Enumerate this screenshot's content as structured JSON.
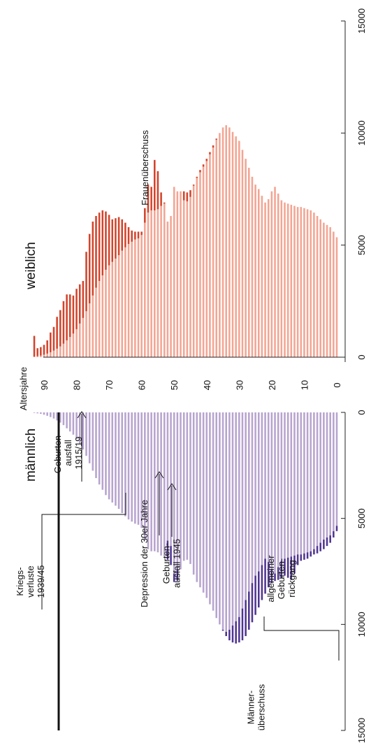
{
  "chart_data": {
    "type": "bar",
    "orientation": "rotated-population-pyramid",
    "title": "",
    "x_axis_label": "Altersjahre",
    "age_range": [
      0,
      93
    ],
    "age_tick_labels": [
      "90",
      "80",
      "70",
      "60",
      "50",
      "40",
      "30",
      "20",
      "10",
      "0"
    ],
    "value_range": [
      0,
      15000
    ],
    "value_tick_labels": [
      "0",
      "5000",
      "10000",
      "15000"
    ],
    "panels": {
      "male": {
        "label": "männlich",
        "color": "#b7a4cf",
        "surplus_color": "#4f3590",
        "surplus_label": "Männer-\nüberschuss"
      },
      "female": {
        "label": "weiblich",
        "color": "#f3a593",
        "surplus_color": "#d2442c",
        "surplus_label": "Frauenüberschuss"
      }
    },
    "series": [
      {
        "name": "männlich",
        "values": [
          5600,
          5900,
          6150,
          6300,
          6450,
          6550,
          6650,
          6700,
          6800,
          6900,
          6950,
          7000,
          7200,
          7600,
          7900,
          7800,
          7700,
          7800,
          7900,
          7950,
          8050,
          8250,
          8550,
          8850,
          9200,
          9550,
          9900,
          10250,
          10550,
          10750,
          10850,
          10900,
          10850,
          10750,
          10550,
          10300,
          10000,
          9700,
          9350,
          9050,
          8750,
          8500,
          8250,
          8000,
          7650,
          7150,
          6950,
          7000,
          7400,
          7950,
          8000,
          7200,
          6950,
          6850,
          6750,
          6600,
          6550,
          6550,
          6450,
          6000,
          5450,
          5300,
          5250,
          5150,
          5050,
          4900,
          4750,
          4550,
          4400,
          4250,
          4100,
          3900,
          3650,
          3400,
          3100,
          2750,
          2400,
          2050,
          1750,
          1500,
          1250,
          1050,
          900,
          750,
          600,
          480,
          380,
          290,
          220,
          160,
          110,
          70,
          45,
          25
        ]
      },
      {
        "name": "weiblich",
        "values": [
          5350,
          5600,
          5800,
          5900,
          6000,
          6150,
          6300,
          6450,
          6550,
          6600,
          6650,
          6700,
          6700,
          6750,
          6800,
          6850,
          6900,
          7000,
          7300,
          7600,
          7400,
          7050,
          6900,
          7200,
          7500,
          7700,
          8050,
          8450,
          8850,
          9250,
          9650,
          9850,
          10050,
          10250,
          10350,
          10250,
          10000,
          9750,
          9450,
          9150,
          8850,
          8600,
          8350,
          8050,
          7700,
          7450,
          7350,
          7400,
          7400,
          7400,
          7600,
          6300,
          6050,
          6900,
          7350,
          8300,
          8800,
          7600,
          7700,
          6650,
          5600,
          5600,
          5600,
          5650,
          5800,
          6000,
          6150,
          6250,
          6200,
          6150,
          6350,
          6500,
          6550,
          6450,
          6300,
          6050,
          5500,
          4700,
          3400,
          3250,
          3050,
          2750,
          2800,
          2800,
          2500,
          2100,
          1800,
          1350,
          1100,
          750,
          550,
          450,
          400,
          950
        ]
      }
    ],
    "annotations": [
      {
        "id": "kriegsverluste",
        "text": "Kriegs-\nverluste\n1939/45"
      },
      {
        "id": "geburtenausfall-1915",
        "text": "Geburten-\nausfall\n1915/19"
      },
      {
        "id": "depression",
        "text": "Depression der 30er Jahre"
      },
      {
        "id": "geburtenausfall-1945",
        "text": "Geburten-\nausfall 1945"
      },
      {
        "id": "geburtenrueckgang",
        "text": "allgemeiner\nGeburten-\nrückgang"
      }
    ]
  }
}
